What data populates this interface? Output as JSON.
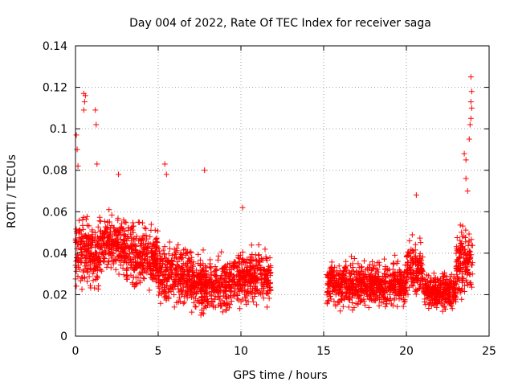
{
  "chart_data": {
    "type": "scatter",
    "title": "Day 004 of 2022, Rate Of TEC Index for receiver saga",
    "xlabel": "GPS time / hours",
    "ylabel": "ROTI / TECUs",
    "xlim": [
      0,
      25
    ],
    "ylim": [
      0,
      0.14
    ],
    "xticks": [
      0,
      5,
      10,
      15,
      20,
      25
    ],
    "xtick_labels": [
      "0",
      "5",
      "10",
      "15",
      "20",
      "25"
    ],
    "yticks": [
      0,
      0.02,
      0.04,
      0.06,
      0.08,
      0.1,
      0.12,
      0.14
    ],
    "ytick_labels": [
      "0",
      "0.02",
      "0.04",
      "0.06",
      "0.08",
      "0.1",
      "0.12",
      "0.14"
    ],
    "grid": true,
    "marker": "+",
    "color": "#ff0000",
    "segments": [
      {
        "x_start": 0.0,
        "x_end": 1.5,
        "y_center": 0.04,
        "spread": 0.02
      },
      {
        "x_start": 1.5,
        "x_end": 3.0,
        "y_center": 0.045,
        "spread": 0.016
      },
      {
        "x_start": 3.0,
        "x_end": 5.0,
        "y_center": 0.038,
        "spread": 0.018
      },
      {
        "x_start": 5.0,
        "x_end": 7.0,
        "y_center": 0.03,
        "spread": 0.018
      },
      {
        "x_start": 7.0,
        "x_end": 9.5,
        "y_center": 0.025,
        "spread": 0.015
      },
      {
        "x_start": 9.5,
        "x_end": 11.8,
        "y_center": 0.028,
        "spread": 0.015
      },
      {
        "x_start": 15.2,
        "x_end": 17.5,
        "y_center": 0.025,
        "spread": 0.013
      },
      {
        "x_start": 17.5,
        "x_end": 20.0,
        "y_center": 0.025,
        "spread": 0.013
      },
      {
        "x_start": 20.0,
        "x_end": 21.0,
        "y_center": 0.032,
        "spread": 0.015
      },
      {
        "x_start": 21.0,
        "x_end": 23.0,
        "y_center": 0.022,
        "spread": 0.01
      },
      {
        "x_start": 23.0,
        "x_end": 24.0,
        "y_center": 0.035,
        "spread": 0.02
      }
    ],
    "highlights": [
      {
        "x": 0.05,
        "y": 0.097
      },
      {
        "x": 0.1,
        "y": 0.09
      },
      {
        "x": 0.15,
        "y": 0.082
      },
      {
        "x": 0.5,
        "y": 0.117
      },
      {
        "x": 0.6,
        "y": 0.116
      },
      {
        "x": 0.55,
        "y": 0.113
      },
      {
        "x": 0.5,
        "y": 0.109
      },
      {
        "x": 1.2,
        "y": 0.109
      },
      {
        "x": 1.25,
        "y": 0.102
      },
      {
        "x": 1.3,
        "y": 0.083
      },
      {
        "x": 2.6,
        "y": 0.078
      },
      {
        "x": 5.4,
        "y": 0.083
      },
      {
        "x": 5.5,
        "y": 0.078
      },
      {
        "x": 7.8,
        "y": 0.08
      },
      {
        "x": 10.1,
        "y": 0.062
      },
      {
        "x": 20.6,
        "y": 0.068
      },
      {
        "x": 23.5,
        "y": 0.088
      },
      {
        "x": 23.6,
        "y": 0.085
      },
      {
        "x": 23.8,
        "y": 0.095
      },
      {
        "x": 23.85,
        "y": 0.102
      },
      {
        "x": 23.9,
        "y": 0.105
      },
      {
        "x": 23.95,
        "y": 0.11
      },
      {
        "x": 23.9,
        "y": 0.113
      },
      {
        "x": 23.95,
        "y": 0.118
      },
      {
        "x": 23.9,
        "y": 0.125
      },
      {
        "x": 23.6,
        "y": 0.076
      },
      {
        "x": 23.7,
        "y": 0.07
      }
    ]
  }
}
